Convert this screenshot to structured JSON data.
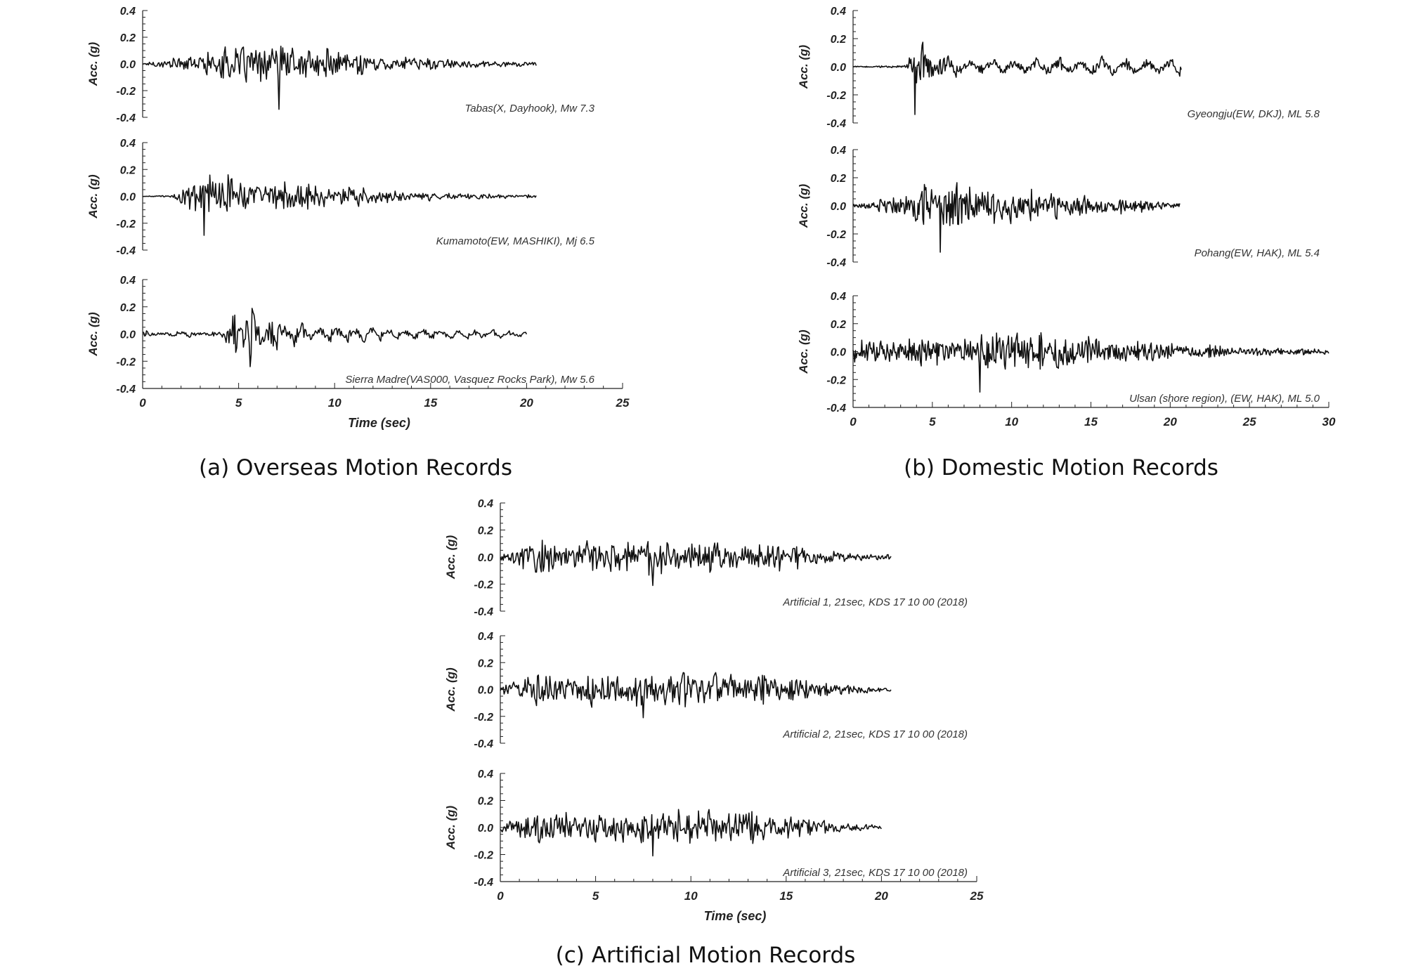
{
  "figure": {
    "captions": {
      "a": "(a) Overseas Motion Records",
      "b": "(b) Domestic Motion Records",
      "c": "(c) Artificial Motion Records"
    }
  },
  "chart_data": [
    {
      "type": "line",
      "panel": "a",
      "title": "Tabas(X, Dayhook), Mw 7.3",
      "xlabel": "",
      "ylabel": "Acc. (g)",
      "xlim": [
        0,
        25
      ],
      "ylim": [
        -0.4,
        0.4
      ],
      "yticks": [
        "0.4",
        "0.2",
        "0.0",
        "-0.2",
        "-0.4"
      ],
      "grid": false,
      "series": [
        {
          "duration": 20.5,
          "pga": 0.34,
          "peak_time": 7.1,
          "onset": 0.6,
          "envelope": [
            [
              0,
              0.01
            ],
            [
              1.5,
              0.06
            ],
            [
              3.5,
              0.12
            ],
            [
              4.5,
              0.18
            ],
            [
              7.1,
              0.2
            ],
            [
              9.5,
              0.16
            ],
            [
              12,
              0.08
            ],
            [
              16,
              0.05
            ],
            [
              20.5,
              0.025
            ]
          ],
          "coda_period": 0
        }
      ]
    },
    {
      "type": "line",
      "panel": "a",
      "title": "Kumamoto(EW, MASHIKI), Mj 6.5",
      "xlabel": "",
      "ylabel": "Acc. (g)",
      "xlim": [
        0,
        25
      ],
      "ylim": [
        -0.4,
        0.4
      ],
      "yticks": [
        "0.4",
        "0.2",
        "0.0",
        "-0.2",
        "-0.4"
      ],
      "grid": false,
      "series": [
        {
          "duration": 20.5,
          "pga": 0.29,
          "peak_time": 3.2,
          "onset": 1.5,
          "envelope": [
            [
              0,
              0.003
            ],
            [
              1.5,
              0.01
            ],
            [
              2.5,
              0.15
            ],
            [
              3.2,
              0.24
            ],
            [
              5,
              0.2
            ],
            [
              8,
              0.14
            ],
            [
              11,
              0.1
            ],
            [
              14,
              0.05
            ],
            [
              17,
              0.025
            ],
            [
              20.5,
              0.02
            ]
          ],
          "coda_period": 0
        }
      ]
    },
    {
      "type": "line",
      "panel": "a",
      "title": "Sierra Madre(VAS000, Vasquez Rocks Park), Mw 5.6",
      "xlabel": "Time (sec)",
      "ylabel": "Acc. (g)",
      "xlim": [
        0,
        25
      ],
      "ylim": [
        -0.4,
        0.4
      ],
      "xticks": [
        "0",
        "5",
        "10",
        "15",
        "20",
        "25"
      ],
      "yticks": [
        "0.4",
        "0.2",
        "0.0",
        "-0.2",
        "-0.4"
      ],
      "grid": false,
      "series": [
        {
          "duration": 20.0,
          "pga": 0.24,
          "peak_time": 5.6,
          "onset": 0.0,
          "envelope": [
            [
              0,
              0.025
            ],
            [
              4,
              0.025
            ],
            [
              4.6,
              0.17
            ],
            [
              5.6,
              0.21
            ],
            [
              6.8,
              0.13
            ],
            [
              8,
              0.06
            ],
            [
              11,
              0.04
            ],
            [
              15,
              0.03
            ],
            [
              20,
              0.015
            ]
          ],
          "coda_period": 0.9
        }
      ]
    },
    {
      "type": "line",
      "panel": "b",
      "title": "Gyeongju(EW, DKJ), ML 5.8",
      "xlabel": "",
      "ylabel": "Acc. (g)",
      "xlim": [
        0,
        30
      ],
      "ylim": [
        -0.4,
        0.4
      ],
      "yticks": [
        "0.4",
        "0.2",
        "0.0",
        "-0.2",
        "-0.4"
      ],
      "grid": false,
      "series": [
        {
          "duration": 20.7,
          "pga": 0.34,
          "peak_time": 3.9,
          "onset": 0.0,
          "envelope": [
            [
              0,
              0.005
            ],
            [
              3.3,
              0.01
            ],
            [
              3.6,
              0.18
            ],
            [
              4.2,
              0.2
            ],
            [
              5.5,
              0.08
            ],
            [
              7,
              0.04
            ],
            [
              20.7,
              0.04
            ]
          ],
          "coda_period": 1.4
        }
      ]
    },
    {
      "type": "line",
      "panel": "b",
      "title": "Pohang(EW, HAK), ML 5.4",
      "xlabel": "",
      "ylabel": "Acc. (g)",
      "xlim": [
        0,
        30
      ],
      "ylim": [
        -0.4,
        0.4
      ],
      "yticks": [
        "0.4",
        "0.2",
        "0.0",
        "-0.2",
        "-0.4"
      ],
      "grid": false,
      "series": [
        {
          "duration": 20.6,
          "pga": 0.33,
          "peak_time": 5.5,
          "onset": 0.0,
          "envelope": [
            [
              0,
              0.02
            ],
            [
              2,
              0.06
            ],
            [
              4,
              0.16
            ],
            [
              5.5,
              0.22
            ],
            [
              9,
              0.17
            ],
            [
              13,
              0.12
            ],
            [
              17,
              0.07
            ],
            [
              20.6,
              0.03
            ]
          ],
          "coda_period": 0
        }
      ]
    },
    {
      "type": "line",
      "panel": "b",
      "title": "Ulsan (shore region), (EW, HAK), ML 5.0",
      "xlabel": "",
      "ylabel": "Acc. (g)",
      "xlim": [
        0,
        30
      ],
      "ylim": [
        -0.4,
        0.4
      ],
      "xticks": [
        "0",
        "5",
        "10",
        "15",
        "20",
        "25",
        "30"
      ],
      "yticks": [
        "0.4",
        "0.2",
        "0.0",
        "-0.2",
        "-0.4"
      ],
      "grid": false,
      "series": [
        {
          "duration": 30.0,
          "pga": 0.29,
          "peak_time": 8.0,
          "onset": 0.0,
          "envelope": [
            [
              0,
              0.14
            ],
            [
              7.6,
              0.12
            ],
            [
              8,
              0.2
            ],
            [
              12,
              0.16
            ],
            [
              17,
              0.12
            ],
            [
              21,
              0.07
            ],
            [
              25,
              0.04
            ],
            [
              30,
              0.025
            ]
          ],
          "coda_period": 0
        }
      ]
    },
    {
      "type": "line",
      "panel": "c",
      "title": "Artificial 1, 21sec, KDS 17 10 00 (2018)",
      "xlabel": "",
      "ylabel": "Acc. (g)",
      "xlim": [
        0,
        25
      ],
      "ylim": [
        -0.4,
        0.4
      ],
      "yticks": [
        "0.4",
        "0.2",
        "0.0",
        "-0.2",
        "-0.4"
      ],
      "grid": false,
      "series": [
        {
          "duration": 20.5,
          "pga": 0.21,
          "peak_time": 8.0,
          "onset": 0.0,
          "envelope": [
            [
              0,
              0.04
            ],
            [
              1.5,
              0.16
            ],
            [
              13,
              0.16
            ],
            [
              16,
              0.1
            ],
            [
              18,
              0.05
            ],
            [
              20.5,
              0.025
            ]
          ],
          "coda_period": 0
        }
      ]
    },
    {
      "type": "line",
      "panel": "c",
      "title": "Artificial 2, 21sec, KDS 17 10 00 (2018)",
      "xlabel": "",
      "ylabel": "Acc. (g)",
      "xlim": [
        0,
        25
      ],
      "ylim": [
        -0.4,
        0.4
      ],
      "yticks": [
        "0.4",
        "0.2",
        "0.0",
        "-0.2",
        "-0.4"
      ],
      "grid": false,
      "series": [
        {
          "duration": 20.5,
          "pga": 0.21,
          "peak_time": 7.5,
          "onset": 0.0,
          "envelope": [
            [
              0,
              0.04
            ],
            [
              1.5,
              0.16
            ],
            [
              13,
              0.16
            ],
            [
              16,
              0.1
            ],
            [
              18,
              0.05
            ],
            [
              20.5,
              0.025
            ]
          ],
          "coda_period": 0
        }
      ]
    },
    {
      "type": "line",
      "panel": "c",
      "title": "Artificial 3, 21sec, KDS 17 10 00 (2018)",
      "xlabel": "Time (sec)",
      "ylabel": "Acc. (g)",
      "xlim": [
        0,
        25
      ],
      "ylim": [
        -0.4,
        0.4
      ],
      "xticks": [
        "0",
        "5",
        "10",
        "15",
        "20",
        "25"
      ],
      "yticks": [
        "0.4",
        "0.2",
        "0.0",
        "-0.2",
        "-0.4"
      ],
      "grid": false,
      "series": [
        {
          "duration": 20.0,
          "pga": 0.21,
          "peak_time": 8.0,
          "onset": 0.0,
          "envelope": [
            [
              0,
              0.04
            ],
            [
              1.5,
              0.16
            ],
            [
              13,
              0.16
            ],
            [
              16,
              0.1
            ],
            [
              18,
              0.05
            ],
            [
              20,
              0.025
            ]
          ],
          "coda_period": 0
        }
      ]
    }
  ]
}
